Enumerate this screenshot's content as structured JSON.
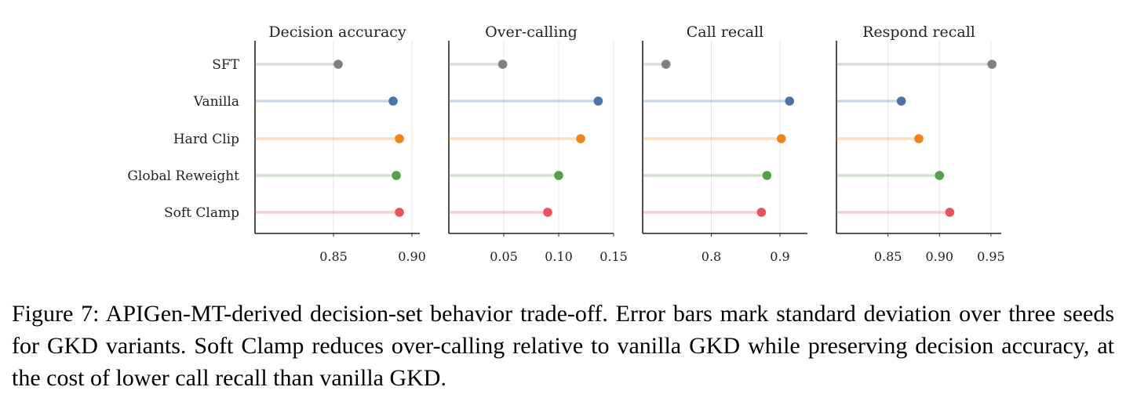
{
  "chart_data": {
    "type": "dot",
    "categories": [
      "SFT",
      "Vanilla",
      "Hard Clip",
      "Global Reweight",
      "Soft Clamp"
    ],
    "colors": {
      "SFT": "#808080",
      "Vanilla": "#4c72a6",
      "Hard Clip": "#f0841c",
      "Global Reweight": "#54a04b",
      "Soft Clamp": "#e7545a"
    },
    "grid": "vertical",
    "panels": [
      {
        "title": "Decision accuracy",
        "xlim": [
          0.8,
          0.905
        ],
        "xticks": [
          0.85,
          0.9
        ],
        "xtick_labels": [
          "0.85",
          "0.90"
        ],
        "values": [
          0.853,
          0.888,
          0.892,
          0.89,
          0.892
        ]
      },
      {
        "title": "Over-calling",
        "xlim": [
          0.0,
          0.15
        ],
        "xticks": [
          0.05,
          0.1,
          0.15
        ],
        "xtick_labels": [
          "0.05",
          "0.10",
          "0.15"
        ],
        "values": [
          0.049,
          0.136,
          0.12,
          0.1,
          0.09
        ]
      },
      {
        "title": "Call recall",
        "xlim": [
          0.7,
          0.94
        ],
        "xticks": [
          0.8,
          0.9
        ],
        "xtick_labels": [
          "0.8",
          "0.9"
        ],
        "values": [
          0.734,
          0.914,
          0.902,
          0.881,
          0.873
        ]
      },
      {
        "title": "Respond recall",
        "xlim": [
          0.8,
          0.96
        ],
        "xticks": [
          0.85,
          0.9,
          0.95
        ],
        "xtick_labels": [
          "0.85",
          "0.90",
          "0.95"
        ],
        "values": [
          0.951,
          0.863,
          0.88,
          0.9,
          0.91
        ]
      }
    ]
  },
  "caption": "Figure 7: APIGen-MT-derived decision-set behavior trade-off. Error bars mark standard deviation over three seeds for GKD variants. Soft Clamp reduces over-calling relative to vanilla GKD while preserving decision accuracy, at the cost of lower call recall than vanilla GKD."
}
